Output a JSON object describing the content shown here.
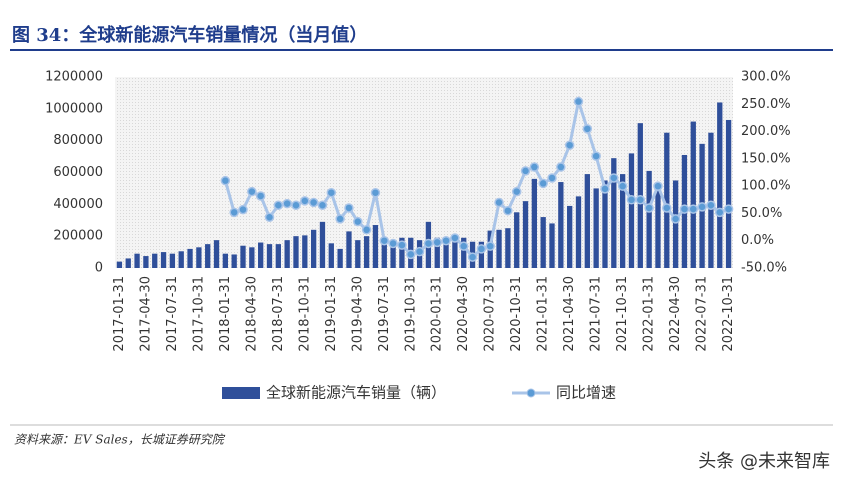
{
  "title": "图 34：全球新能源汽车销量情况（当月值）",
  "chart_data": {
    "type": "bar",
    "categories": [
      "2017-01-31",
      null,
      null,
      "2017-04-30",
      null,
      null,
      "2017-07-31",
      null,
      null,
      "2017-10-31",
      null,
      null,
      "2018-01-31",
      null,
      null,
      "2018-04-30",
      null,
      null,
      "2018-07-31",
      null,
      null,
      "2018-10-31",
      null,
      null,
      "2019-01-31",
      null,
      null,
      "2019-04-30",
      null,
      null,
      "2019-07-31",
      null,
      null,
      "2019-10-31",
      null,
      null,
      "2020-01-31",
      null,
      null,
      "2020-04-30",
      null,
      null,
      "2020-07-31",
      null,
      null,
      "2020-10-31",
      null,
      null,
      "2021-01-31",
      null,
      null,
      "2021-04-30",
      null,
      null,
      "2021-07-31",
      null,
      null,
      "2021-10-31",
      null,
      null,
      "2022-01-31",
      null,
      null,
      "2022-04-30",
      null,
      null,
      "2022-07-31",
      null,
      null,
      "2022-10-31"
    ],
    "series": [
      {
        "name": "全球新能源汽车销量（辆）",
        "type": "bar",
        "color": "#2f4f9a",
        "values": [
          40000,
          60000,
          90000,
          75000,
          90000,
          100000,
          90000,
          105000,
          120000,
          130000,
          150000,
          175000,
          90000,
          85000,
          140000,
          130000,
          160000,
          150000,
          150000,
          175000,
          200000,
          205000,
          240000,
          290000,
          155000,
          120000,
          230000,
          175000,
          200000,
          270000,
          150000,
          160000,
          190000,
          190000,
          175000,
          290000,
          190000,
          155000,
          190000,
          190000,
          165000,
          165000,
          235000,
          240000,
          250000,
          350000,
          420000,
          560000,
          320000,
          280000,
          540000,
          390000,
          450000,
          590000,
          500000,
          550000,
          690000,
          590000,
          720000,
          910000,
          610000,
          530000,
          850000,
          550000,
          710000,
          920000,
          780000,
          850000,
          1040000,
          930000
        ]
      },
      {
        "name": "同比增速",
        "type": "line",
        "axis": "y2",
        "color": "#a9c4e8",
        "marker_color": "#5b9bd5",
        "values": [
          null,
          null,
          null,
          null,
          null,
          null,
          null,
          null,
          null,
          null,
          null,
          null,
          110,
          52,
          57,
          90,
          82,
          43,
          65,
          68,
          65,
          73,
          70,
          65,
          88,
          40,
          60,
          35,
          20,
          88,
          0,
          -5,
          -8,
          -25,
          -20,
          -5,
          -3,
          0,
          5,
          -10,
          -30,
          -15,
          -10,
          70,
          55,
          90,
          128,
          135,
          105,
          115,
          135,
          175,
          255,
          205,
          155,
          95,
          115,
          100,
          75,
          75,
          60,
          100,
          60,
          40,
          58,
          58,
          62,
          65,
          52,
          58
        ]
      }
    ],
    "ylim": [
      0,
      1200000
    ],
    "yticks": [
      0,
      200000,
      400000,
      600000,
      800000,
      1000000,
      1200000
    ],
    "y2lim": [
      -50,
      300
    ],
    "y2ticks": [
      {
        "value": -50,
        "label": "-50.0%"
      },
      {
        "value": 0,
        "label": "0.0%"
      },
      {
        "value": 50,
        "label": "50.0%"
      },
      {
        "value": 100,
        "label": "100.0%"
      },
      {
        "value": 150,
        "label": "150.0%"
      },
      {
        "value": 200,
        "label": "200.0%"
      },
      {
        "value": 250,
        "label": "250.0%"
      },
      {
        "value": 300,
        "label": "300.0%"
      }
    ],
    "legend": "bottom"
  },
  "source": "资料来源：EV Sales，长城证券研究院",
  "watermark": "头条 @未来智库"
}
